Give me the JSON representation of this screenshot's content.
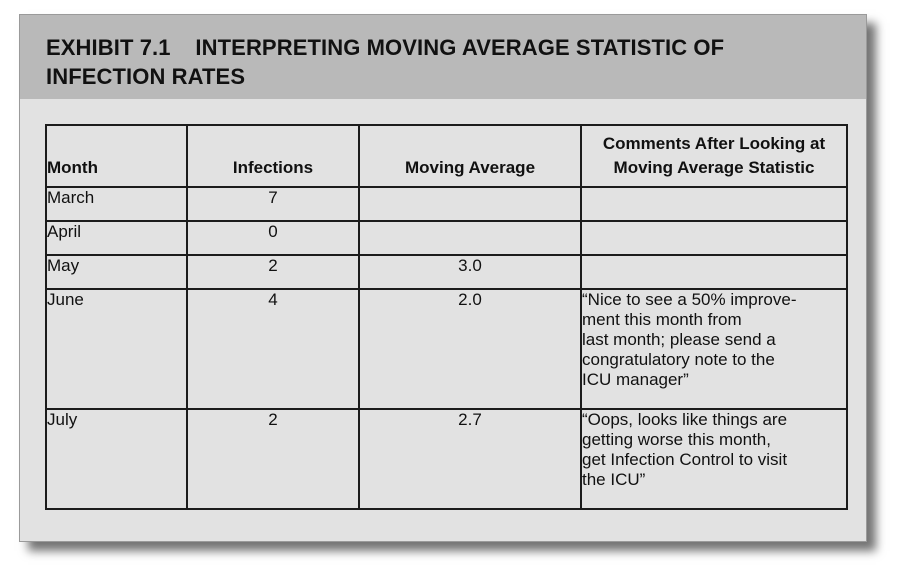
{
  "exhibit": {
    "title_line1": "EXHIBIT 7.1    INTERPRETING MOVING AVERAGE STATISTIC OF",
    "title_line2": "INFECTION RATES"
  },
  "table": {
    "headers": {
      "month": "Month",
      "infections": "Infections",
      "moving_average": "Moving Average",
      "comments_line1": "Comments After Looking at",
      "comments_line2": "Moving Average Statistic"
    },
    "rows": [
      {
        "month": "March",
        "infections": "7",
        "moving_average": "",
        "comment": []
      },
      {
        "month": "April",
        "infections": "0",
        "moving_average": "",
        "comment": []
      },
      {
        "month": "May",
        "infections": "2",
        "moving_average": "3.0",
        "comment": []
      },
      {
        "month": "June",
        "infections": "4",
        "moving_average": "2.0",
        "comment": [
          "“Nice to see a 50% improve-",
          "ment this month from",
          "last month; please send a",
          "congratulatory note to the",
          "ICU manager”"
        ]
      },
      {
        "month": "July",
        "infections": "2",
        "moving_average": "2.7",
        "comment": [
          "“Oops, looks like things are",
          "getting worse this month,",
          "get Infection Control to visit",
          "the ICU”"
        ]
      }
    ]
  }
}
